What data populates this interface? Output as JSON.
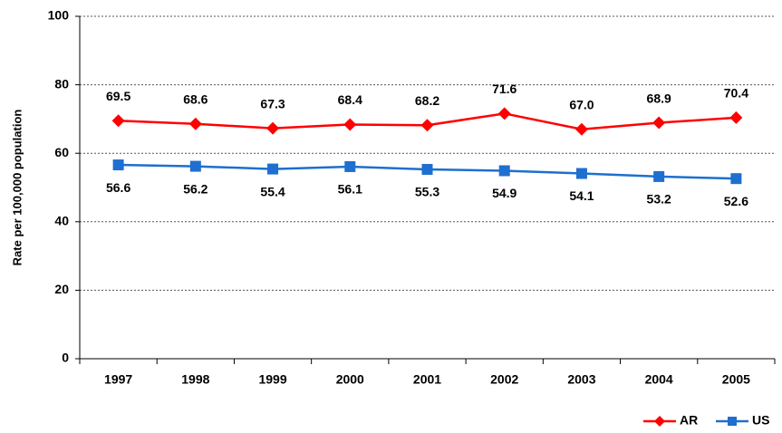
{
  "chart_data": {
    "type": "line",
    "y_label": "Rate per 100,000 population",
    "categories": [
      "1997",
      "1998",
      "1999",
      "2000",
      "2001",
      "2002",
      "2003",
      "2004",
      "2005"
    ],
    "series": [
      {
        "name": "AR",
        "color": "#ff0000",
        "values": [
          69.5,
          68.6,
          67.3,
          68.4,
          68.2,
          71.6,
          67.0,
          68.9,
          70.4
        ],
        "value_labels": [
          "69.5",
          "68.6",
          "67.3",
          "68.4",
          "68.2",
          "71.6",
          "67.0",
          "68.9",
          "70.4"
        ]
      },
      {
        "name": "US",
        "color": "#1e6fcf",
        "values": [
          56.6,
          56.2,
          55.4,
          56.1,
          55.3,
          54.9,
          54.1,
          53.2,
          52.6
        ],
        "value_labels": [
          "56.6",
          "56.2",
          "55.4",
          "56.1",
          "55.3",
          "54.9",
          "54.1",
          "53.2",
          "52.6"
        ]
      }
    ],
    "ylim": [
      0,
      100
    ],
    "yticks": [
      0,
      20,
      40,
      60,
      80,
      100
    ],
    "grid": true,
    "legend": "bottom-right"
  }
}
